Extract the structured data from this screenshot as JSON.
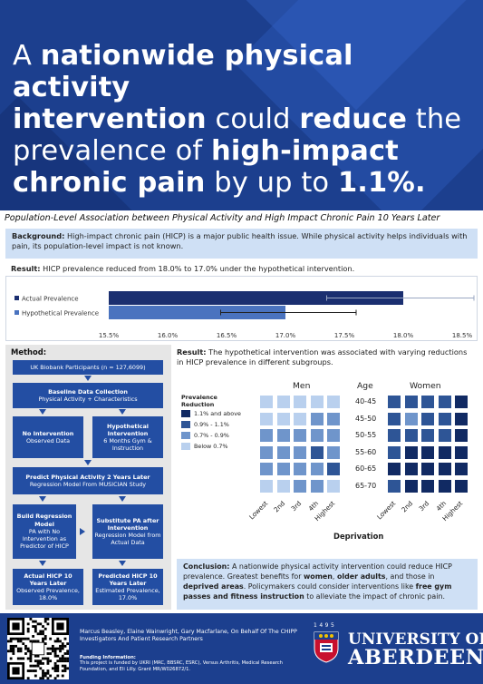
{
  "header": {
    "line1_a": "A ",
    "line1_b": "nationwide physical activity",
    "line2_a": "intervention",
    "line2_b": " could ",
    "line2_c": "reduce",
    "line2_d": " the",
    "line3_a": "prevalence of ",
    "line3_b": "high-impact",
    "line4_a": "chronic pain",
    "line4_b": " by up to ",
    "line4_c": "1.1%."
  },
  "subtitle": "Population-Level Association between Physical Activity and High Impact Chronic Pain 10 Years Later",
  "background": {
    "label": "Background:",
    "text": " High-impact chronic pain (HICP) is a major public health issue. While physical activity helps individuals with pain, its population-level impact is not known."
  },
  "result_top": {
    "label": "Result:",
    "text": " HICP prevalence reduced from 18.0% to 17.0% under the hypothetical intervention."
  },
  "chart_data": {
    "type": "bar",
    "orientation": "horizontal",
    "categories": [
      "Actual Prevalence",
      "Hypothetical Prevalence"
    ],
    "values": [
      18.0,
      17.0
    ],
    "error_low": [
      17.35,
      16.45
    ],
    "error_high": [
      18.6,
      17.6
    ],
    "xlim": [
      15.5,
      18.5
    ],
    "ticks": [
      "15.5%",
      "16.0%",
      "16.5%",
      "17.0%",
      "17.5%",
      "18.0%",
      "18.5%"
    ],
    "colors": [
      "#1b2f70",
      "#4a73bf"
    ],
    "grid": false
  },
  "method": {
    "title": "Method:",
    "box1": "UK Biobank Participants (n = 127,6099)",
    "box2_title": "Baseline Data Collection",
    "box2_sub": "Physical Activity + Characteristics",
    "box3_title": "No Intervention",
    "box3_sub": "Observed Data",
    "box4_title": "Hypothetical Intervention",
    "box4_sub": "6 Months Gym & Instruction",
    "box5_title": "Predict Physical Activity 2 Years Later",
    "box5_sub": "Regression Model From MUSICIAN Study",
    "box6_title": "Build Regression Model",
    "box6_sub": "PA with No Intervention as Predictor of HICP",
    "box7_title": "Substitute PA after Intervention",
    "box7_sub": "Regression Model from Actual Data",
    "box8_title": "Actual HICP 10 Years Later",
    "box8_sub": "Observed Prevalence, 18.0%",
    "box9_title": "Predicted HICP 10 Years Later",
    "box9_sub": "Estimated Prevalence, 17.0%"
  },
  "result_right": {
    "label": "Result:",
    "text": " The hypothetical intervention was associated with varying reductions in HICP prevalence in different subgroups."
  },
  "heatmap": {
    "legend_title_1": "Prevalence",
    "legend_title_2": "Reduction",
    "legend": [
      {
        "label": "1.1% and above",
        "color": "#112a63"
      },
      {
        "label": "0.9% - 1.1%",
        "color": "#2e5596"
      },
      {
        "label": "0.7% - 0.9%",
        "color": "#6f95cb"
      },
      {
        "label": "Below 0.7%",
        "color": "#b9d0ee"
      }
    ],
    "men_title": "Men",
    "women_title": "Women",
    "age_title": "Age",
    "ages": [
      "40-45",
      "45-50",
      "50-55",
      "55-60",
      "60-65",
      "65-70"
    ],
    "deprivation": [
      "Lowest",
      "2nd",
      "3rd",
      "4th",
      "Highest"
    ],
    "xlabel": "Deprivation",
    "men": [
      [
        3,
        3,
        3,
        3,
        3
      ],
      [
        3,
        3,
        3,
        2,
        2
      ],
      [
        2,
        2,
        2,
        2,
        2
      ],
      [
        2,
        2,
        2,
        1,
        2
      ],
      [
        2,
        2,
        2,
        2,
        1
      ],
      [
        3,
        3,
        2,
        2,
        3
      ]
    ],
    "women": [
      [
        1,
        1,
        1,
        1,
        0
      ],
      [
        1,
        2,
        1,
        1,
        0
      ],
      [
        1,
        1,
        1,
        1,
        0
      ],
      [
        1,
        0,
        0,
        0,
        0
      ],
      [
        0,
        0,
        0,
        0,
        0
      ],
      [
        1,
        0,
        0,
        0,
        0
      ]
    ]
  },
  "conclusion": {
    "label": "Conclusion:",
    "t1": " A nationwide physical activity intervention could reduce HICP prevalence. Greatest benefits for ",
    "b1": "women",
    "t2": ", ",
    "b2": "older adults",
    "t3": ", and those in ",
    "b3": "deprived areas",
    "t4": ". Policymakers could consider interventions like ",
    "b4": "free gym passes and fitness instruction",
    "t5": " to alleviate the impact of chronic pain."
  },
  "footer": {
    "authors": "Marcus Beasley, Elaine Wainwright, Gary Macfarlane, On Behalf Of The CHIPP Investigators And Patient Research Partners",
    "funding_label": "Funding Information:",
    "funding_text": "This project is funded by UKRI (MRC, BBSRC, ESRC), Versus Arthritis, Medical Research Foundation, and Eli Lilly. Grant MR/W026872/1.",
    "year": "1495",
    "uni_line1": "UNIVERSITY OF",
    "uni_line2": "ABERDEEN"
  }
}
